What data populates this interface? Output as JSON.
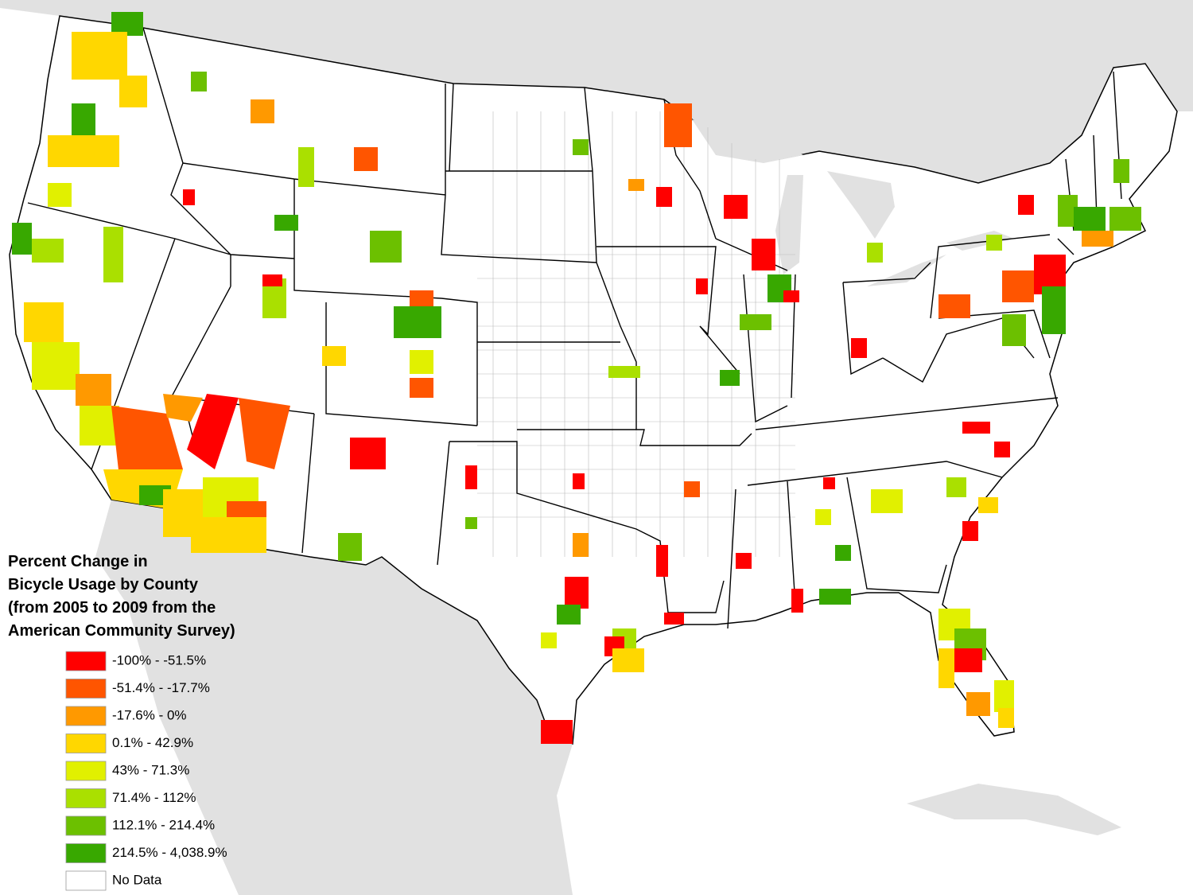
{
  "title_lines": [
    "Percent Change in",
    "Bicycle Usage by County",
    "(from 2005 to 2009 from the",
    "American Community Survey)"
  ],
  "legend": [
    {
      "label": "-100% - -51.5%",
      "color": "#ff0000"
    },
    {
      "label": "-51.4% - -17.7%",
      "color": "#ff5500"
    },
    {
      "label": "-17.6% - 0%",
      "color": "#ff9900"
    },
    {
      "label": "0.1% - 42.9%",
      "color": "#ffd700"
    },
    {
      "label": "43% - 71.3%",
      "color": "#e1f000"
    },
    {
      "label": "71.4% - 112%",
      "color": "#aae000"
    },
    {
      "label": "112.1% - 214.4%",
      "color": "#6cc000"
    },
    {
      "label": "214.5% - 4,038.9%",
      "color": "#38a800"
    },
    {
      "label": "No Data",
      "color": "#ffffff"
    }
  ]
}
